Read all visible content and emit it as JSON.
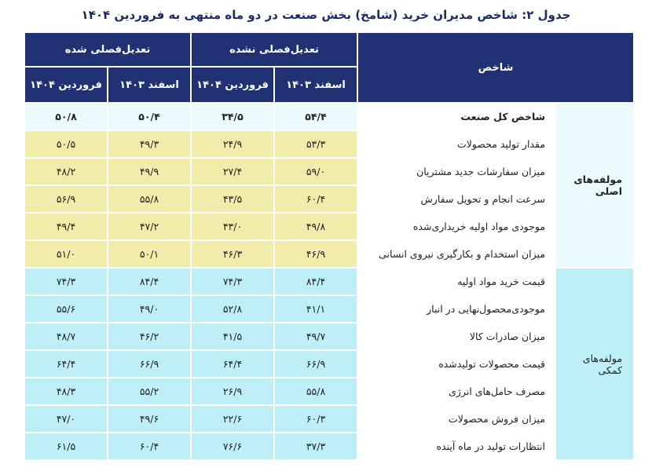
{
  "title": "جدول ۲: شاخص مدیران خرید (شامخ) بخش صنعت در دو ماه منتهی به فروردین ۱۴۰۴",
  "header": {
    "indicator": "شاخص",
    "group_nsa": "تعدیل‌فصلی نشده",
    "group_sa": "تعدیل‌فصلی شده",
    "esfand": "اسفند ۱۴۰۳",
    "farvardin": "فروردین ۱۴۰۴"
  },
  "categories": {
    "main": "مولفه‌های اصلی",
    "aux": "مولفه‌های کمکی"
  },
  "rows": [
    {
      "name": "شاخص کل صنعت",
      "v": [
        "۵۴/۴",
        "۳۴/۵",
        "۵۰/۴",
        "۵۰/۸"
      ]
    },
    {
      "name": "مقدار تولید محصولات",
      "v": [
        "۵۳/۳",
        "۲۴/۹",
        "۴۹/۳",
        "۵۰/۵"
      ]
    },
    {
      "name": "میزان سفارشات جدید مشتریان",
      "v": [
        "۵۹/۰",
        "۲۷/۴",
        "۴۹/۹",
        "۴۸/۲"
      ]
    },
    {
      "name": "سرعت انجام و تحویل سفارش",
      "v": [
        "۶۰/۴",
        "۴۳/۵",
        "۵۵/۸",
        "۵۶/۹"
      ]
    },
    {
      "name": "موجودی مواد اولیه خریداری‌شده",
      "v": [
        "۴۹/۸",
        "۴۳/۰",
        "۴۷/۲",
        "۴۹/۴"
      ]
    },
    {
      "name": "میزان استخدام و بکارگیری نیروی انسانی",
      "v": [
        "۴۶/۹",
        "۴۶/۳",
        "۵۰/۱",
        "۵۱/۰"
      ]
    },
    {
      "name": "قیمت خرید مواد اولیه",
      "v": [
        "۸۴/۴",
        "۷۴/۳",
        "۸۴/۴",
        "۷۴/۳"
      ]
    },
    {
      "name": "موجودی‌محصول‌نهایی در انبار",
      "v": [
        "۴۱/۱",
        "۵۲/۸",
        "۴۹/۰",
        "۵۵/۶"
      ]
    },
    {
      "name": "میزان صادرات کالا",
      "v": [
        "۴۹/۷",
        "۴۱/۵",
        "۴۶/۲",
        "۴۸/۷"
      ]
    },
    {
      "name": "قیمت محصولات تولیدشده",
      "v": [
        "۶۶/۹",
        "۶۴/۴",
        "۶۶/۹",
        "۶۴/۴"
      ]
    },
    {
      "name": "مصرف حامل‌های انرژی",
      "v": [
        "۵۵/۸",
        "۲۶/۹",
        "۵۵/۲",
        "۴۸/۳"
      ]
    },
    {
      "name": "میزان فروش محصولات",
      "v": [
        "۶۰/۳",
        "۲۲/۶",
        "۴۹/۶",
        "۴۷/۰"
      ]
    },
    {
      "name": "انتظارات تولید در ماه آینده",
      "v": [
        "۳۷/۳",
        "۷۶/۶",
        "۶۰/۴",
        "۶۱/۵"
      ]
    }
  ]
}
